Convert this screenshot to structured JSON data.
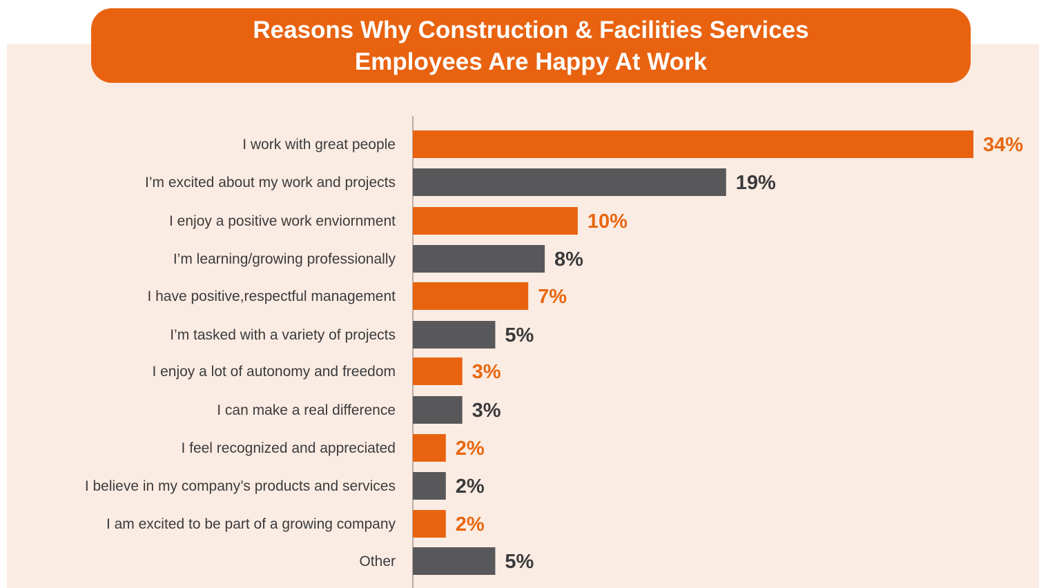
{
  "title": {
    "line1": "Reasons Why Construction & Facilities Services",
    "line2": "Employees Are Happy At Work"
  },
  "colors": {
    "orange": "#e8620f",
    "gray": "#58585a",
    "background": "#fbece3",
    "label_orange": "#e8660f",
    "label_gray": "#3a3a3c"
  },
  "chart_data": {
    "type": "bar",
    "orientation": "horizontal",
    "title": "Reasons Why Construction & Facilities Services Employees Are Happy At Work",
    "categories": [
      "I work with great people",
      "I’m excited about my work and projects",
      "I enjoy a positive work enviornment",
      "I’m learning/growing professionally",
      "I have positive,respectful management",
      "I’m tasked with a variety of projects",
      "I enjoy a lot of autonomy and freedom",
      "I can make a real difference",
      "I feel recognized and appreciated",
      "I believe in my company’s products and services",
      "I am excited to be part of a growing company",
      "Other"
    ],
    "values": [
      34,
      19,
      10,
      8,
      7,
      5,
      3,
      3,
      2,
      2,
      2,
      5
    ],
    "value_labels": [
      "34%",
      "19%",
      "10%",
      "8%",
      "7%",
      "5%",
      "3%",
      "3%",
      "2%",
      "2%",
      "2%",
      "5%"
    ],
    "bar_colors": [
      "orange",
      "gray",
      "orange",
      "gray",
      "orange",
      "gray",
      "orange",
      "gray",
      "orange",
      "gray",
      "orange",
      "gray"
    ],
    "xlim": [
      0,
      34
    ],
    "unit": "%",
    "grid": false,
    "legend": "none"
  }
}
